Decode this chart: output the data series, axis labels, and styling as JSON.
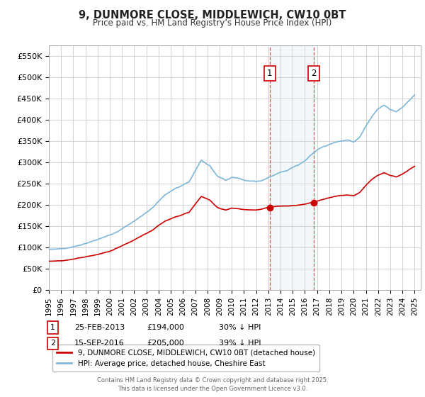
{
  "title": "9, DUNMORE CLOSE, MIDDLEWICH, CW10 0BT",
  "subtitle": "Price paid vs. HM Land Registry’s House Price Index (HPI)",
  "hpi_color": "#7eb6d9",
  "hpi_fill_color": "#c8dff0",
  "price_color": "#cc0000",
  "background_color": "#ffffff",
  "grid_color": "#cccccc",
  "ylim": [
    0,
    575000
  ],
  "yticks": [
    0,
    50000,
    100000,
    150000,
    200000,
    250000,
    300000,
    350000,
    400000,
    450000,
    500000,
    550000
  ],
  "ytick_labels": [
    "£0",
    "£50K",
    "£100K",
    "£150K",
    "£200K",
    "£250K",
    "£300K",
    "£350K",
    "£400K",
    "£450K",
    "£500K",
    "£550K"
  ],
  "xlim_start": 1995,
  "xlim_end": 2025.5,
  "xticks": [
    1995,
    1996,
    1997,
    1998,
    1999,
    2000,
    2001,
    2002,
    2003,
    2004,
    2005,
    2006,
    2007,
    2008,
    2009,
    2010,
    2011,
    2012,
    2013,
    2014,
    2015,
    2016,
    2017,
    2018,
    2019,
    2020,
    2021,
    2022,
    2023,
    2024,
    2025
  ],
  "legend_label_red": "9, DUNMORE CLOSE, MIDDLEWICH, CW10 0BT (detached house)",
  "legend_label_blue": "HPI: Average price, detached house, Cheshire East",
  "sale1_x": 2013.12,
  "sale1_y": 194000,
  "sale2_x": 2016.71,
  "sale2_y": 205000,
  "footer": "Contains HM Land Registry data © Crown copyright and database right 2025.\nThis data is licensed under the Open Government Licence v3.0.",
  "ann1_date": "25-FEB-2013",
  "ann1_price": "£194,000",
  "ann1_hpi": "30% ↓ HPI",
  "ann2_date": "15-SEP-2016",
  "ann2_price": "£205,000",
  "ann2_hpi": "39% ↓ HPI"
}
